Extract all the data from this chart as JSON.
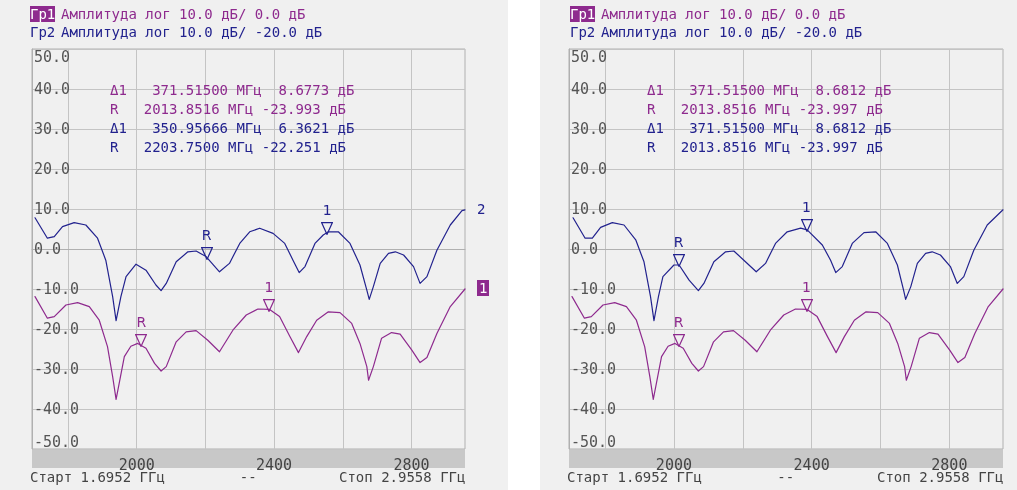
{
  "chart_data": [
    {
      "type": "line",
      "xlim": [
        1695.2,
        2955.8
      ],
      "ylim": [
        -50,
        50
      ],
      "xticks": [
        {
          "value": 1800,
          "label": null
        },
        2000,
        {
          "value": 2200,
          "label": null
        },
        2400,
        {
          "value": 2600,
          "label": null
        },
        2800
      ],
      "yticks": [
        {
          "value": -50,
          "label": "-50.0"
        },
        {
          "value": -40,
          "label": "-40.0"
        },
        {
          "value": -30,
          "label": "-30.0"
        },
        {
          "value": -20,
          "label": "-20.0"
        },
        {
          "value": -10,
          "label": "-10.0"
        },
        {
          "value": 0,
          "label": "0.0"
        },
        {
          "value": 10,
          "label": "10.0"
        },
        {
          "value": 20,
          "label": "20.0"
        },
        {
          "value": 30,
          "label": "30.0"
        },
        {
          "value": 40,
          "label": "40.0"
        },
        {
          "value": 50,
          "label": "50.0"
        }
      ],
      "grid": true,
      "legend": "top left",
      "marker": "none",
      "line_style": "solid",
      "series": [
        {
          "name": "Гр1",
          "color": "#8e2a8e",
          "x": [
            1704,
            1740,
            1760,
            1794,
            1828,
            1862,
            1891,
            1915,
            1930,
            1940,
            1949,
            1964,
            1983,
            2003,
            2027,
            2052,
            2071,
            2086,
            2115,
            2144,
            2173,
            2207,
            2241,
            2280,
            2319,
            2353,
            2387,
            2416,
            2446,
            2471,
            2495,
            2524,
            2558,
            2592,
            2626,
            2650,
            2670,
            2675,
            2689,
            2713,
            2742,
            2767,
            2801,
            2825,
            2845,
            2874,
            2913,
            2955.8
          ],
          "values": [
            -11.9,
            -17.3,
            -16.9,
            -14.0,
            -13.4,
            -14.4,
            -17.8,
            -24.4,
            -31.9,
            -37.6,
            -33.6,
            -26.9,
            -24.3,
            -23.6,
            -24.8,
            -28.6,
            -30.5,
            -29.4,
            -23.2,
            -20.7,
            -20.4,
            -22.8,
            -25.7,
            -20.3,
            -16.5,
            -15.0,
            -15.1,
            -16.9,
            -21.9,
            -25.9,
            -21.9,
            -17.8,
            -15.7,
            -15.9,
            -18.6,
            -23.6,
            -29.4,
            -32.8,
            -29.4,
            -22.3,
            -20.9,
            -21.3,
            -25.3,
            -28.4,
            -27.1,
            -21.1,
            -14.4,
            -10.0
          ]
        },
        {
          "name": "Гр2",
          "color": "#22228e",
          "x": [
            1704,
            1740,
            1760,
            1784,
            1818,
            1852,
            1886,
            1910,
            1930,
            1940,
            1954,
            1969,
            1998,
            2027,
            2056,
            2071,
            2086,
            2115,
            2149,
            2173,
            2202,
            2241,
            2270,
            2300,
            2329,
            2358,
            2397,
            2431,
            2455,
            2473,
            2490,
            2519,
            2543,
            2558,
            2587,
            2621,
            2650,
            2670,
            2677,
            2689,
            2709,
            2733,
            2753,
            2777,
            2806,
            2825,
            2845,
            2874,
            2913,
            2947,
            2955.8
          ],
          "values": [
            7.8,
            2.7,
            3.1,
            5.6,
            6.6,
            6.0,
            2.7,
            -2.8,
            -11.9,
            -17.9,
            -11.9,
            -6.9,
            -3.8,
            -5.3,
            -9.0,
            -10.4,
            -8.6,
            -3.2,
            -0.7,
            -0.5,
            -1.9,
            -5.7,
            -3.6,
            1.4,
            4.3,
            5.2,
            3.9,
            1.4,
            -2.8,
            -5.9,
            -4.4,
            1.4,
            3.5,
            4.3,
            4.3,
            1.4,
            -4.0,
            -10.3,
            -12.6,
            -9.4,
            -3.6,
            -1.1,
            -0.7,
            -1.5,
            -4.4,
            -8.6,
            -6.9,
            -0.3,
            6.0,
            9.6,
            9.8
          ]
        }
      ],
      "annotations": [
        "Амплитуда лог 10.0 дБ/ 0.0 дБ",
        "Амплитуда лог 10.0 дБ/ -20.0 дБ",
        "Δ1   371.51500 МГц  8.6773 дБ",
        "R   2013.8516 МГц -23.993 дБ",
        "Δ1   350.95666 МГц  6.3621 дБ",
        "R   2203.7500 МГц -22.251 дБ",
        "Старт 1.6952 ГГц",
        "--",
        "Стоп 2.9558 ГГц",
        "1",
        "2",
        {
          "text": "R",
          "x": 2013.85,
          "y": -23.99
        },
        {
          "text": "1",
          "x": 2385.37,
          "y": -15.32
        },
        {
          "text": "R",
          "x": 2203.75,
          "y": -2.25
        },
        {
          "text": "1",
          "x": 2554.71,
          "y": 4.11
        }
      ]
    },
    {
      "type": "line",
      "xlim": [
        1695.2,
        2955.8
      ],
      "ylim": [
        -50,
        50
      ],
      "xticks": [
        {
          "value": 1800,
          "label": null
        },
        2000,
        {
          "value": 2200,
          "label": null
        },
        2400,
        {
          "value": 2600,
          "label": null
        },
        2800
      ],
      "yticks": [
        {
          "value": -50,
          "label": "-50.0"
        },
        {
          "value": -40,
          "label": "-40.0"
        },
        {
          "value": -30,
          "label": "-30.0"
        },
        {
          "value": -20,
          "label": "-20.0"
        },
        {
          "value": -10,
          "label": "-10.0"
        },
        {
          "value": 0,
          "label": "0.0"
        },
        {
          "value": 10,
          "label": "10.0"
        },
        {
          "value": 20,
          "label": "20.0"
        },
        {
          "value": 30,
          "label": "30.0"
        },
        {
          "value": 40,
          "label": "40.0"
        },
        {
          "value": 50,
          "label": "50.0"
        }
      ],
      "grid": true,
      "legend": "top left",
      "marker": "none",
      "line_style": "solid",
      "series": [
        {
          "name": "Гр1",
          "color": "#8e2a8e",
          "x": [
            1704,
            1740,
            1760,
            1794,
            1828,
            1862,
            1891,
            1915,
            1930,
            1940,
            1949,
            1964,
            1983,
            2003,
            2027,
            2052,
            2071,
            2086,
            2115,
            2144,
            2173,
            2207,
            2241,
            2280,
            2319,
            2353,
            2387,
            2416,
            2446,
            2471,
            2495,
            2524,
            2558,
            2592,
            2626,
            2650,
            2670,
            2675,
            2689,
            2713,
            2742,
            2767,
            2801,
            2825,
            2845,
            2874,
            2913,
            2955.8
          ],
          "values": [
            -11.9,
            -17.3,
            -16.9,
            -14.0,
            -13.4,
            -14.4,
            -17.8,
            -24.4,
            -31.9,
            -37.6,
            -33.6,
            -26.9,
            -24.3,
            -23.6,
            -24.8,
            -28.6,
            -30.5,
            -29.4,
            -23.2,
            -20.7,
            -20.4,
            -22.8,
            -25.7,
            -20.3,
            -16.5,
            -15.0,
            -15.1,
            -16.9,
            -21.9,
            -25.9,
            -21.9,
            -17.8,
            -15.7,
            -15.9,
            -18.6,
            -23.6,
            -29.4,
            -32.8,
            -29.4,
            -22.3,
            -20.9,
            -21.3,
            -25.3,
            -28.4,
            -27.1,
            -21.1,
            -14.4,
            -10.0
          ]
        },
        {
          "name": "Гр2",
          "color": "#22228e",
          "x": [
            1707,
            1742,
            1763,
            1787,
            1821,
            1855,
            1889,
            1913,
            1932,
            1942,
            1955,
            1968,
            2000,
            2015,
            2044,
            2071,
            2087,
            2116,
            2150,
            2174,
            2203,
            2239,
            2266,
            2295,
            2329,
            2368,
            2387,
            2431,
            2455,
            2470,
            2489,
            2518,
            2552,
            2586,
            2620,
            2649,
            2667,
            2673,
            2688,
            2707,
            2731,
            2750,
            2774,
            2803,
            2823,
            2842,
            2871,
            2910,
            2955.8
          ],
          "values": [
            7.8,
            2.7,
            2.7,
            5.4,
            6.6,
            6.0,
            2.3,
            -3.2,
            -11.9,
            -17.9,
            -11.9,
            -6.9,
            -4.0,
            -4.0,
            -7.8,
            -10.4,
            -8.6,
            -3.2,
            -0.7,
            -0.5,
            -2.8,
            -5.7,
            -3.6,
            1.4,
            4.3,
            5.2,
            4.8,
            1.0,
            -2.8,
            -5.9,
            -4.4,
            1.4,
            4.1,
            4.3,
            1.4,
            -4.0,
            -10.3,
            -12.6,
            -9.4,
            -3.6,
            -1.1,
            -0.7,
            -1.5,
            -4.4,
            -8.6,
            -6.9,
            -0.3,
            6.0,
            9.8
          ]
        }
      ],
      "annotations": [
        "Амплитуда лог 10.0 дБ/ 0.0 дБ",
        "Амплитуда лог 10.0 дБ/ -20.0 дБ",
        "Δ1   371.51500 МГц  8.6812 дБ",
        "R   2013.8516 МГц -23.997 дБ",
        "Δ1   371.51500 МГц  8.6812 дБ",
        "R   2013.8516 МГц -23.997 дБ",
        "Старт 1.6952 ГГц",
        "--",
        "Стоп 2.9558 ГГц",
        {
          "text": "R",
          "x": 2013.85,
          "y": -24.0
        },
        {
          "text": "1",
          "x": 2385.37,
          "y": -15.32
        },
        {
          "text": "R",
          "x": 2013.85,
          "y": -4.0
        },
        {
          "text": "1",
          "x": 2385.37,
          "y": 4.68
        }
      ]
    }
  ]
}
